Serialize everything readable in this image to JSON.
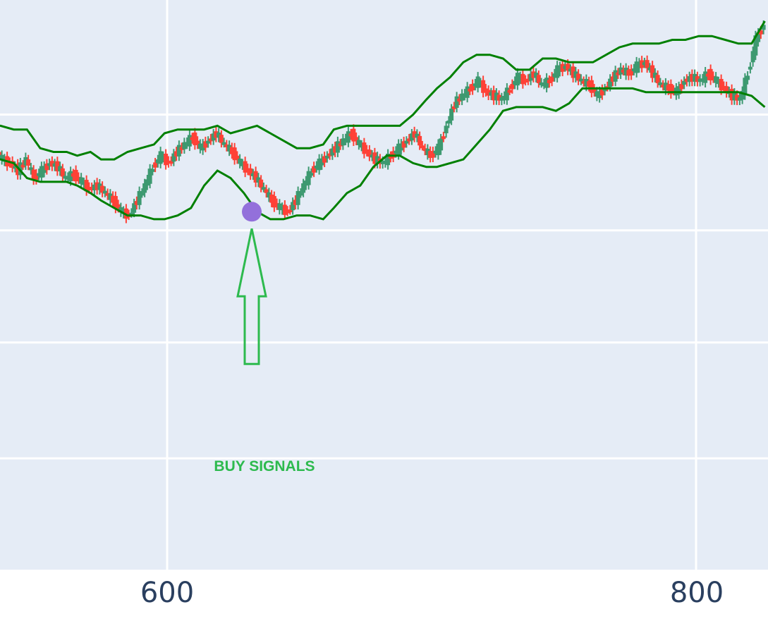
{
  "chart_data": {
    "type": "candlestick",
    "title": "",
    "xlabel": "",
    "ylabel": "",
    "xlim": [
      532,
      826
    ],
    "ylim": [
      0,
      100
    ],
    "grid": true,
    "legend": "none",
    "x_ticks": [
      600,
      800
    ],
    "x_tick_labels": [
      "600",
      "800"
    ],
    "colors": {
      "increasing": "#3d9970",
      "decreasing": "#ff4136",
      "bands": "#008000",
      "marker": "#9370db",
      "annotation": "#2dba4e",
      "plot_bg": "#e5ecf6",
      "grid": "#ffffff",
      "tick_text": "#2a3f5f"
    },
    "series": [
      {
        "role": "price",
        "points": [
          [
            532,
            65
          ],
          [
            535,
            66
          ],
          [
            538,
            63
          ],
          [
            541,
            62
          ],
          [
            544,
            60
          ],
          [
            547,
            63
          ],
          [
            550,
            58
          ],
          [
            553,
            60
          ],
          [
            556,
            62
          ],
          [
            559,
            61
          ],
          [
            562,
            58
          ],
          [
            565,
            59
          ],
          [
            568,
            57
          ],
          [
            571,
            55
          ],
          [
            574,
            56
          ],
          [
            577,
            54
          ],
          [
            580,
            52
          ],
          [
            583,
            49
          ],
          [
            586,
            48
          ],
          [
            589,
            52
          ],
          [
            592,
            56
          ],
          [
            595,
            61
          ],
          [
            598,
            64
          ],
          [
            601,
            62
          ],
          [
            604,
            65
          ],
          [
            607,
            67
          ],
          [
            610,
            69
          ],
          [
            613,
            66
          ],
          [
            616,
            68
          ],
          [
            619,
            70
          ],
          [
            622,
            67
          ],
          [
            625,
            65
          ],
          [
            628,
            62
          ],
          [
            631,
            60
          ],
          [
            634,
            58
          ],
          [
            637,
            55
          ],
          [
            640,
            52
          ],
          [
            643,
            50
          ],
          [
            646,
            49
          ],
          [
            649,
            52
          ],
          [
            652,
            56
          ],
          [
            655,
            60
          ],
          [
            658,
            62
          ],
          [
            661,
            64
          ],
          [
            664,
            66
          ],
          [
            667,
            68
          ],
          [
            670,
            70
          ],
          [
            673,
            67
          ],
          [
            676,
            65
          ],
          [
            679,
            63
          ],
          [
            682,
            62
          ],
          [
            685,
            64
          ],
          [
            688,
            66
          ],
          [
            691,
            68
          ],
          [
            694,
            70
          ],
          [
            697,
            66
          ],
          [
            700,
            64
          ],
          [
            703,
            66
          ],
          [
            706,
            72
          ],
          [
            709,
            78
          ],
          [
            712,
            80
          ],
          [
            715,
            82
          ],
          [
            718,
            84
          ],
          [
            721,
            81
          ],
          [
            724,
            80
          ],
          [
            727,
            79
          ],
          [
            730,
            82
          ],
          [
            733,
            85
          ],
          [
            736,
            84
          ],
          [
            739,
            86
          ],
          [
            742,
            83
          ],
          [
            745,
            84
          ],
          [
            748,
            87
          ],
          [
            751,
            88
          ],
          [
            754,
            86
          ],
          [
            757,
            84
          ],
          [
            760,
            83
          ],
          [
            763,
            80
          ],
          [
            766,
            82
          ],
          [
            769,
            85
          ],
          [
            772,
            87
          ],
          [
            775,
            86
          ],
          [
            778,
            88
          ],
          [
            781,
            89
          ],
          [
            784,
            86
          ],
          [
            787,
            83
          ],
          [
            790,
            82
          ],
          [
            793,
            81
          ],
          [
            796,
            84
          ],
          [
            799,
            85
          ],
          [
            802,
            84
          ],
          [
            805,
            86
          ],
          [
            808,
            84
          ],
          [
            811,
            82
          ],
          [
            814,
            80
          ],
          [
            817,
            79
          ],
          [
            820,
            86
          ],
          [
            823,
            95
          ],
          [
            826,
            99
          ]
        ]
      },
      {
        "role": "upper-band",
        "points": [
          [
            532,
            72
          ],
          [
            537,
            72
          ],
          [
            542,
            71
          ],
          [
            547,
            71
          ],
          [
            552,
            66
          ],
          [
            557,
            65
          ],
          [
            562,
            65
          ],
          [
            566,
            64
          ],
          [
            571,
            65
          ],
          [
            575,
            63
          ],
          [
            580,
            63
          ],
          [
            585,
            65
          ],
          [
            590,
            66
          ],
          [
            595,
            67
          ],
          [
            599,
            70
          ],
          [
            604,
            71
          ],
          [
            609,
            71
          ],
          [
            614,
            71
          ],
          [
            619,
            72
          ],
          [
            624,
            70
          ],
          [
            629,
            71
          ],
          [
            634,
            72
          ],
          [
            639,
            70
          ],
          [
            644,
            68
          ],
          [
            649,
            66
          ],
          [
            654,
            66
          ],
          [
            659,
            67
          ],
          [
            663,
            71
          ],
          [
            668,
            72
          ],
          [
            673,
            72
          ],
          [
            678,
            72
          ],
          [
            683,
            72
          ],
          [
            688,
            72
          ],
          [
            693,
            75
          ],
          [
            698,
            79
          ],
          [
            702,
            82
          ],
          [
            707,
            85
          ],
          [
            712,
            89
          ],
          [
            717,
            91
          ],
          [
            722,
            91
          ],
          [
            727,
            90
          ],
          [
            732,
            87
          ],
          [
            737,
            87
          ],
          [
            742,
            90
          ],
          [
            747,
            90
          ],
          [
            752,
            89
          ],
          [
            757,
            89
          ],
          [
            761,
            89
          ],
          [
            766,
            91
          ],
          [
            771,
            93
          ],
          [
            776,
            94
          ],
          [
            781,
            94
          ],
          [
            786,
            94
          ],
          [
            791,
            95
          ],
          [
            796,
            95
          ],
          [
            801,
            96
          ],
          [
            806,
            96
          ],
          [
            811,
            95
          ],
          [
            816,
            94
          ],
          [
            821,
            94
          ],
          [
            826,
            100
          ]
        ]
      },
      {
        "role": "lower-band",
        "points": [
          [
            532,
            63
          ],
          [
            537,
            63
          ],
          [
            542,
            62
          ],
          [
            547,
            58
          ],
          [
            552,
            57
          ],
          [
            557,
            57
          ],
          [
            562,
            57
          ],
          [
            566,
            56
          ],
          [
            571,
            54
          ],
          [
            575,
            52
          ],
          [
            580,
            50
          ],
          [
            585,
            48
          ],
          [
            590,
            48
          ],
          [
            595,
            47
          ],
          [
            599,
            47
          ],
          [
            604,
            48
          ],
          [
            609,
            50
          ],
          [
            614,
            56
          ],
          [
            619,
            60
          ],
          [
            624,
            58
          ],
          [
            629,
            54
          ],
          [
            634,
            49
          ],
          [
            639,
            47
          ],
          [
            644,
            47
          ],
          [
            649,
            48
          ],
          [
            654,
            48
          ],
          [
            659,
            47
          ],
          [
            663,
            50
          ],
          [
            668,
            54
          ],
          [
            673,
            56
          ],
          [
            678,
            61
          ],
          [
            683,
            64
          ],
          [
            688,
            64
          ],
          [
            693,
            62
          ],
          [
            698,
            61
          ],
          [
            702,
            61
          ],
          [
            707,
            62
          ],
          [
            712,
            63
          ],
          [
            717,
            67
          ],
          [
            722,
            71
          ],
          [
            727,
            76
          ],
          [
            732,
            77
          ],
          [
            737,
            77
          ],
          [
            742,
            77
          ],
          [
            747,
            76
          ],
          [
            752,
            78
          ],
          [
            757,
            82
          ],
          [
            761,
            82
          ],
          [
            766,
            82
          ],
          [
            771,
            82
          ],
          [
            776,
            82
          ],
          [
            781,
            81
          ],
          [
            786,
            81
          ],
          [
            791,
            81
          ],
          [
            796,
            81
          ],
          [
            801,
            81
          ],
          [
            806,
            81
          ],
          [
            811,
            81
          ],
          [
            816,
            81
          ],
          [
            821,
            80
          ],
          [
            826,
            77
          ]
        ]
      }
    ],
    "annotations": [
      {
        "text": "BUY SIGNALS",
        "x": 632,
        "y": 49,
        "marker": "circle",
        "arrow": "up"
      }
    ]
  }
}
